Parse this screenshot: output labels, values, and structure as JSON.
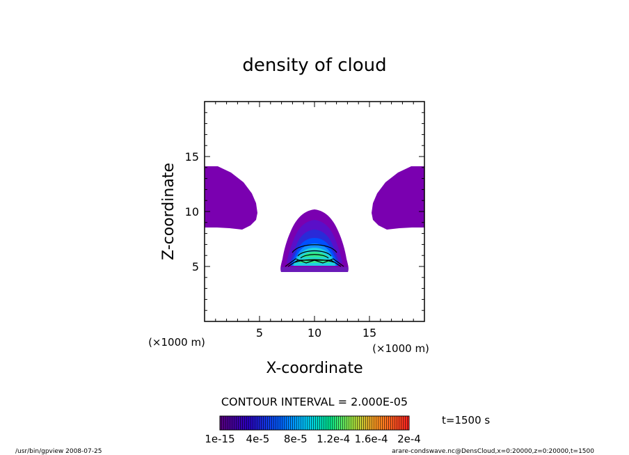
{
  "chart_data": {
    "type": "contour",
    "title": "density of cloud",
    "xlabel": "X-coordinate",
    "ylabel": "Z-coordinate",
    "x_unit": "(×1000 m)",
    "y_unit": "(×1000 m)",
    "xlim": [
      0,
      20
    ],
    "ylim": [
      0,
      20
    ],
    "xticks": [
      5,
      10,
      15
    ],
    "yticks": [
      5,
      10,
      15
    ],
    "contour_interval_text": "CONTOUR INTERVAL = 2.000E-05",
    "time_text": "t=1500 s",
    "colorbar": {
      "labels": [
        "1e-15",
        "4e-5",
        "8e-5",
        "1.2e-4",
        "1.6e-4",
        "2e-4"
      ],
      "min": 1e-15,
      "max": 0.0002
    },
    "regions": [
      {
        "name": "left-lobe",
        "level": "low",
        "x_range": [
          0,
          4.8
        ],
        "z_range": [
          8.6,
          14.2
        ]
      },
      {
        "name": "right-lobe",
        "level": "low",
        "x_range": [
          15.2,
          20
        ],
        "z_range": [
          8.6,
          14.2
        ]
      },
      {
        "name": "central-peak",
        "level": "max",
        "center": [
          10,
          6
        ],
        "x_range": [
          7,
          13
        ],
        "z_range": [
          4.6,
          10.1
        ]
      }
    ]
  },
  "footer": {
    "left": "/usr/bin/gpview   2008-07-25",
    "right": "arare-condswave.nc@DensCloud,x=0:20000,z=0:20000,t=1500"
  }
}
